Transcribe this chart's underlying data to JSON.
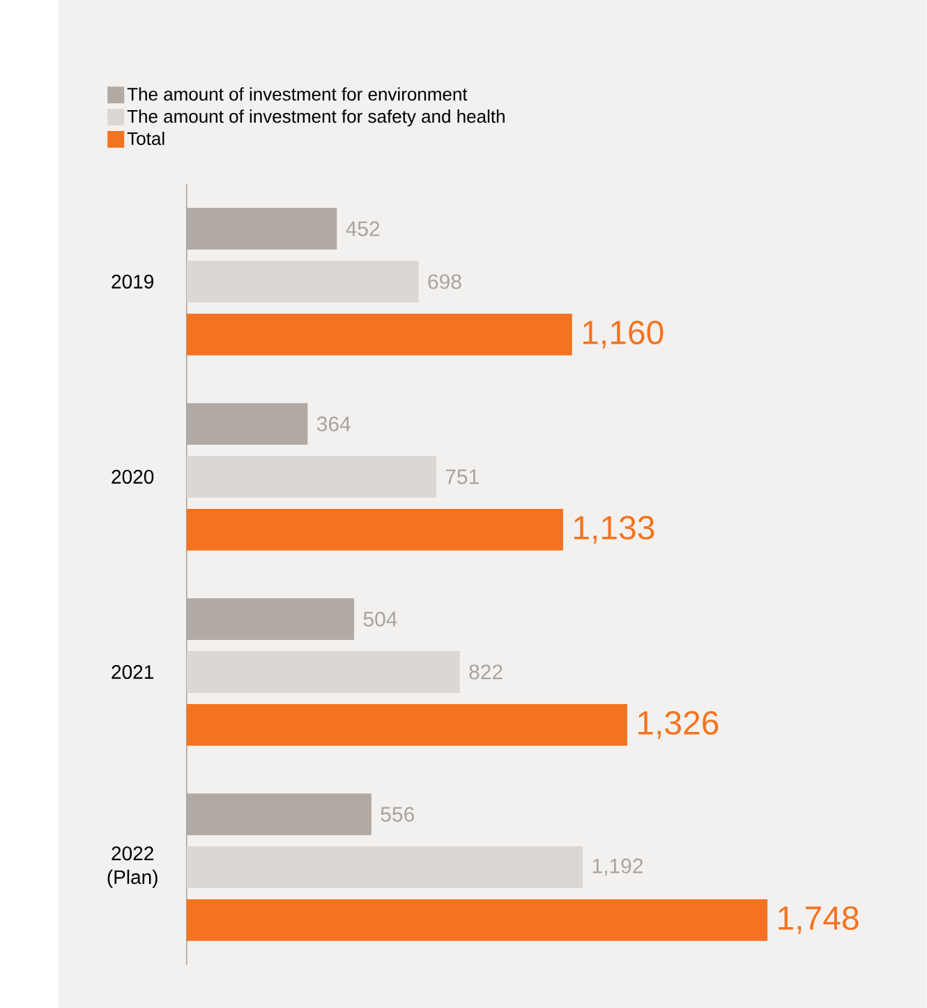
{
  "chart_data": {
    "type": "bar",
    "orientation": "horizontal",
    "legend": "top left",
    "tick_labels": "y",
    "categories": [
      "2019",
      "2020",
      "2021",
      "2022 (Plan)"
    ],
    "series": [
      {
        "name": "The amount of investment for environment",
        "color": "#b0a9a4",
        "values": [
          452,
          364,
          504,
          556
        ],
        "value_labels": [
          "452",
          "364",
          "504",
          "556"
        ]
      },
      {
        "name": "The amount of investment for safety and health",
        "color": "#dcd6d4",
        "values": [
          698,
          751,
          822,
          1192
        ],
        "value_labels": [
          "698",
          "751",
          "822",
          "1,192"
        ]
      },
      {
        "name": "Total",
        "color": "#f47320",
        "values": [
          1160,
          1133,
          1326,
          1748
        ],
        "value_labels": [
          "1,160",
          "1,133",
          "1,326",
          "1,748"
        ]
      }
    ]
  }
}
